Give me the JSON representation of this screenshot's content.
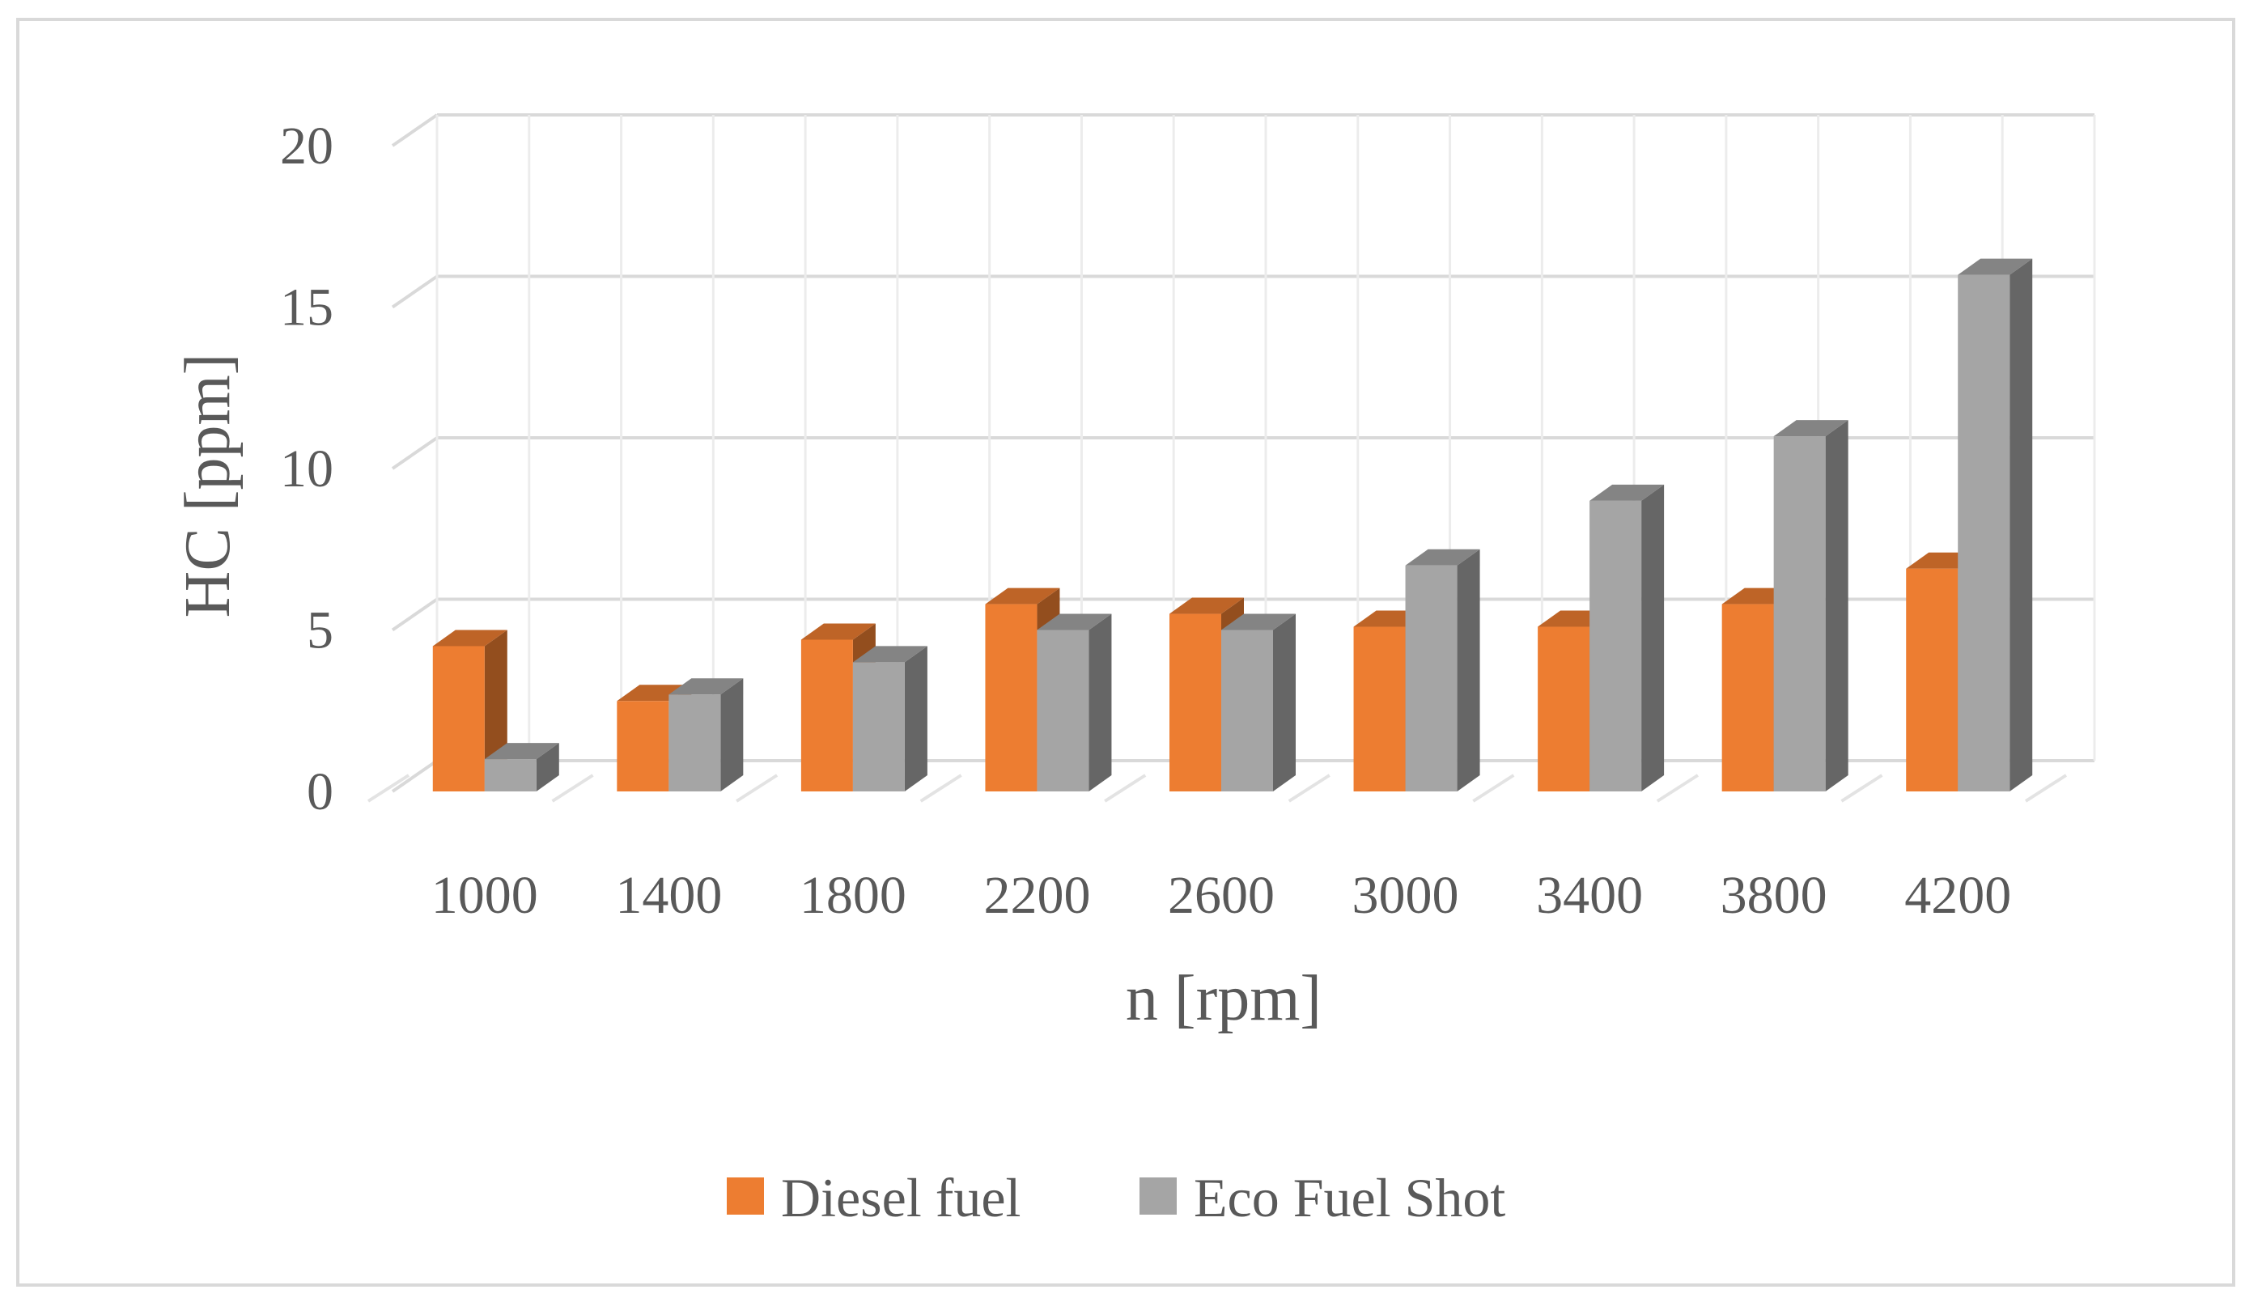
{
  "chart_data": {
    "type": "bar",
    "style": "3d-clustered-column",
    "categories": [
      "1000",
      "1400",
      "1800",
      "2200",
      "2600",
      "3000",
      "3400",
      "3800",
      "4200"
    ],
    "series": [
      {
        "name": "Diesel fuel",
        "color": "#ed7d31",
        "values": [
          4.5,
          2.8,
          4.7,
          5.8,
          5.5,
          5.1,
          5.1,
          5.8,
          6.9
        ]
      },
      {
        "name": "Eco Fuel Shot",
        "color": "#a5a5a5",
        "values": [
          1.0,
          3.0,
          4.0,
          5.0,
          5.0,
          7.0,
          9.0,
          11.0,
          16.0
        ]
      }
    ],
    "xlabel": "n [rpm]",
    "ylabel": "HC [ppm]",
    "ylim": [
      0,
      20
    ],
    "yticks": [
      "0",
      "5",
      "10",
      "15",
      "20"
    ],
    "grid": true,
    "legend_position": "bottom"
  }
}
